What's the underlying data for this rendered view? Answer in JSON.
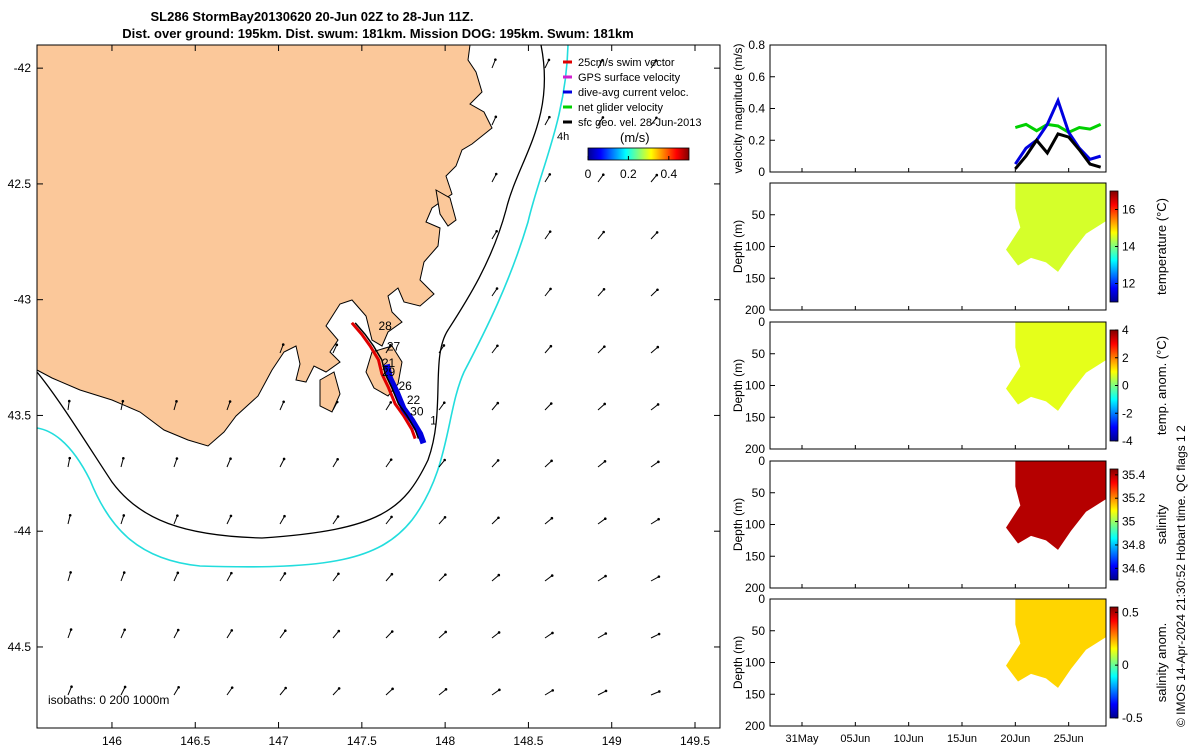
{
  "title": {
    "line1": "SL286 StormBay20130620 20-Jun 02Z to 28-Jun 11Z.",
    "line2": "Dist. over ground: 195km. Dist. swum: 181km. Mission DOG: 195km. Swum: 181km"
  },
  "map": {
    "x_ticks": [
      146,
      146.5,
      147,
      147.5,
      148,
      148.5,
      149,
      149.5
    ],
    "x_tick_labels": [
      "146",
      "146.5",
      "147",
      "147.5",
      "148",
      "148.5",
      "149",
      "149.5"
    ],
    "y_ticks": [
      -42,
      -42.5,
      -43,
      -43.5,
      -44,
      -44.5
    ],
    "y_tick_labels": [
      "-42",
      "42.5",
      "-43",
      "43.5",
      "-44",
      "44.5"
    ],
    "xlim": [
      145.55,
      149.65
    ],
    "ylim": [
      -44.85,
      -41.9
    ],
    "legend": [
      {
        "label": "25cm/s swim vector",
        "color": "#e00000"
      },
      {
        "label": "GPS surface velocity",
        "color": "#d020d0"
      },
      {
        "label": "dive-avg current veloc.",
        "color": "#0000e0"
      },
      {
        "label": "net glider velocity",
        "color": "#00d000"
      },
      {
        "label": "sfc geo. vel. 28-Jun-2013",
        "color": "#000000"
      }
    ],
    "legend_extra": "4h",
    "colorbar": {
      "unit": "(m/s)",
      "ticks": [
        "0",
        "0.2",
        "0.4"
      ],
      "range": [
        0,
        0.5
      ]
    },
    "isobath_label": "isobaths: 0   200  1000m",
    "track_labels": [
      {
        "text": "28",
        "lon": 147.6,
        "lat": -43.13
      },
      {
        "text": "27",
        "lon": 147.65,
        "lat": -43.22
      },
      {
        "text": "21",
        "lon": 147.62,
        "lat": -43.29
      },
      {
        "text": "29",
        "lon": 147.62,
        "lat": -43.33
      },
      {
        "text": "26",
        "lon": 147.72,
        "lat": -43.39
      },
      {
        "text": "22",
        "lon": 147.77,
        "lat": -43.45
      },
      {
        "text": "30",
        "lon": 147.79,
        "lat": -43.5
      },
      {
        "text": "1",
        "lon": 147.91,
        "lat": -43.54
      }
    ],
    "colors": {
      "land": "#fbc89a",
      "iso200": "#000000",
      "iso1000": "#22dddd",
      "track": "#e00000"
    }
  },
  "timeseries": {
    "x_tick_labels": [
      "31May",
      "05Jun",
      "10Jun",
      "15Jun",
      "20Jun",
      "25Jun"
    ],
    "x_tick_days": [
      0,
      5,
      10,
      15,
      20,
      25
    ],
    "xlim_days": [
      -3,
      28.5
    ],
    "data_start_day": 20,
    "data_end_day": 28.5
  },
  "chart_data": [
    {
      "type": "line",
      "title": "",
      "ylabel": "velocity magnitude (m/s)",
      "ylim": [
        0,
        0.8
      ],
      "yticks": [
        "0",
        "0.2",
        "0.4",
        "0.6",
        "0.8"
      ],
      "x": [
        20,
        21,
        22,
        23,
        24,
        25,
        26,
        27,
        28
      ],
      "series": [
        {
          "name": "net glider velocity",
          "color": "#00d000",
          "values": [
            0.28,
            0.3,
            0.26,
            0.3,
            0.29,
            0.25,
            0.28,
            0.27,
            0.3
          ]
        },
        {
          "name": "dive-avg current veloc.",
          "color": "#0000e0",
          "values": [
            0.05,
            0.15,
            0.2,
            0.3,
            0.45,
            0.25,
            0.15,
            0.08,
            0.1
          ]
        },
        {
          "name": "sfc geo. vel.",
          "color": "#000000",
          "values": [
            0.02,
            0.1,
            0.2,
            0.12,
            0.24,
            0.22,
            0.14,
            0.05,
            0.03
          ]
        }
      ]
    },
    {
      "type": "heatmap",
      "ylabel": "Depth (m)",
      "yticks": [
        "50",
        "100",
        "150",
        "200"
      ],
      "ylim": [
        0,
        200
      ],
      "colorbar_label": "temperature (°C)",
      "colorbar_ticks": [
        "16",
        "14",
        "12"
      ],
      "range": [
        11,
        17
      ],
      "typical_value": 14.5
    },
    {
      "type": "heatmap",
      "ylabel": "Depth (m)",
      "yticks": [
        "0",
        "50",
        "100",
        "150",
        "200"
      ],
      "ylim": [
        0,
        200
      ],
      "colorbar_label": "temp. anom. (°C)",
      "colorbar_ticks": [
        "4",
        "2",
        "0",
        "-2",
        "-4"
      ],
      "range": [
        -4,
        4
      ],
      "typical_value": 0.8
    },
    {
      "type": "heatmap",
      "ylabel": "Depth (m)",
      "yticks": [
        "0",
        "50",
        "100",
        "150",
        "200"
      ],
      "ylim": [
        0,
        200
      ],
      "colorbar_label": "salinity",
      "colorbar_ticks": [
        "35.4",
        "35.2",
        "35",
        "34.8",
        "34.6"
      ],
      "range": [
        34.5,
        35.45
      ],
      "typical_value": 35.4
    },
    {
      "type": "heatmap",
      "ylabel": "Depth (m)",
      "yticks": [
        "0",
        "50",
        "100",
        "150",
        "200"
      ],
      "ylim": [
        0,
        200
      ],
      "colorbar_label": "salinity anom.",
      "colorbar_ticks": [
        "0.5",
        "0",
        "-0.5"
      ],
      "range": [
        -0.5,
        0.55
      ],
      "typical_value": 0.2
    }
  ],
  "credit": "© IMOS 14-Apr-2024 21:30:52 Hobart time. QC flags 1  2"
}
